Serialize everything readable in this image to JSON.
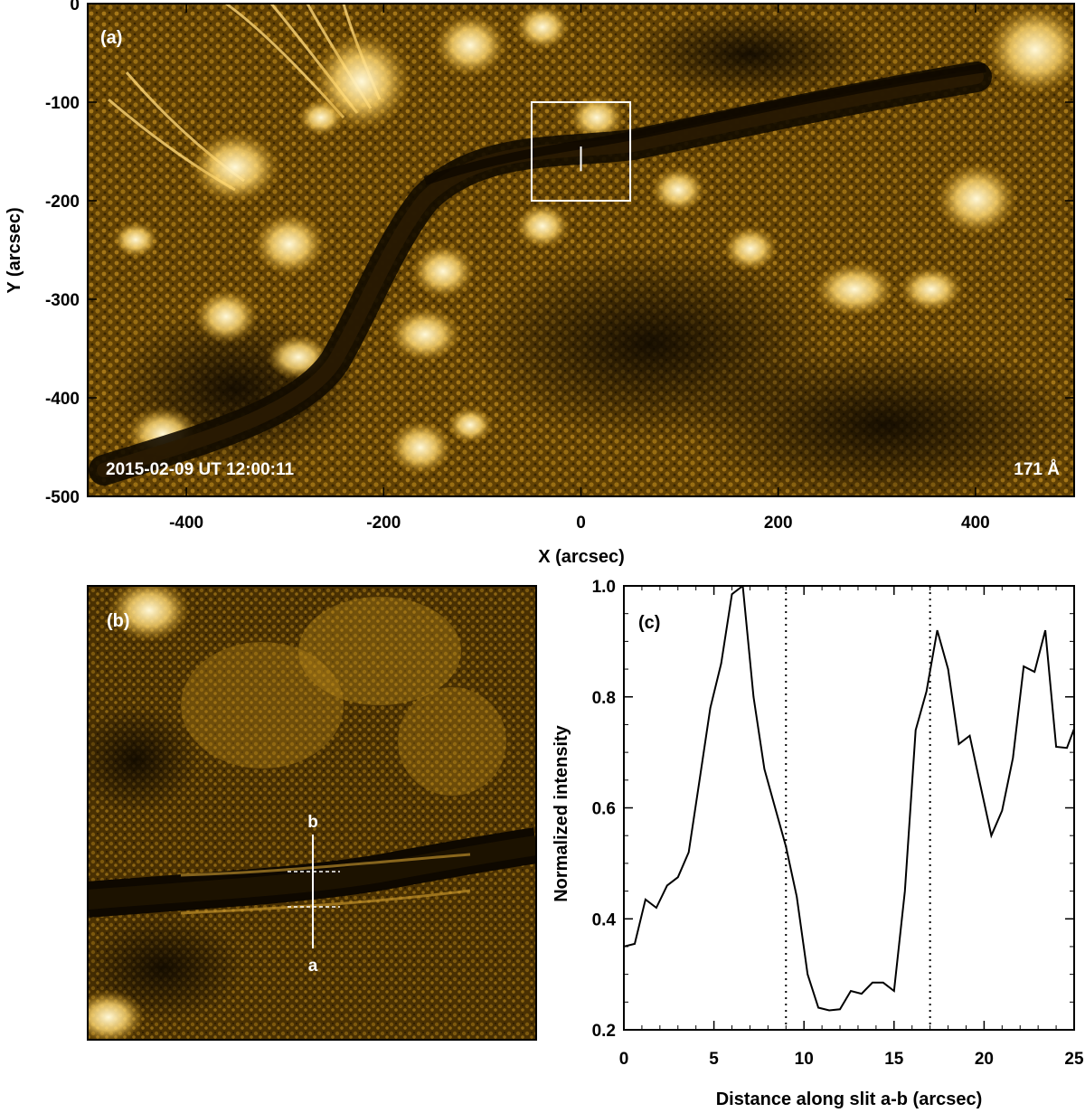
{
  "panel_a": {
    "label": "(a)",
    "timestamp": "2015-02-09 UT 12:00:11",
    "wavelength": "171 Å",
    "xlabel": "X (arcsec)",
    "ylabel": "Y (arcsec)",
    "xlim": [
      -500,
      500
    ],
    "ylim": [
      -500,
      0
    ],
    "xticks": [
      -400,
      -200,
      0,
      200,
      400
    ],
    "yticks": [
      0,
      -100,
      -200,
      -300,
      -400,
      -500
    ],
    "box": {
      "x": [
        -50,
        50
      ],
      "y": [
        -200,
        -100
      ]
    },
    "slit": {
      "x": 0,
      "y": [
        -170,
        -145
      ]
    },
    "image_colors": {
      "dark": "#1a1000",
      "mid": "#7a5200",
      "bright": "#ffe9a8"
    }
  },
  "panel_b": {
    "label": "(b)",
    "slit_label_a": "a",
    "slit_label_b": "b"
  },
  "chart_data": {
    "type": "line",
    "label": "(c)",
    "xlabel": "Distance along slit a-b (arcsec)",
    "ylabel": "Normalized intensity",
    "xlim": [
      0,
      25
    ],
    "ylim": [
      0.2,
      1.0
    ],
    "xticks": [
      0,
      5,
      10,
      15,
      20,
      25
    ],
    "yticks": [
      0.2,
      0.4,
      0.6,
      0.8,
      1.0
    ],
    "vlines": [
      9,
      17
    ],
    "series": [
      {
        "x": [
          0,
          0.6,
          1.2,
          1.8,
          2.4,
          3.0,
          3.6,
          4.2,
          4.8,
          5.4,
          6.0,
          6.6,
          7.2,
          7.8,
          8.4,
          9.0,
          9.6,
          10.2,
          10.8,
          11.4,
          12.0,
          12.6,
          13.2,
          13.8,
          14.4,
          15.0,
          15.6,
          16.2,
          16.8,
          17.4,
          18.0,
          18.6,
          19.2,
          19.8,
          20.4,
          21.0,
          21.6,
          22.2,
          22.8,
          23.4,
          24.0,
          24.6,
          25.2
        ],
        "y": [
          0.35,
          0.355,
          0.435,
          0.42,
          0.46,
          0.475,
          0.52,
          0.65,
          0.78,
          0.86,
          0.985,
          1.0,
          0.8,
          0.67,
          0.6,
          0.53,
          0.44,
          0.3,
          0.24,
          0.235,
          0.237,
          0.27,
          0.265,
          0.285,
          0.285,
          0.27,
          0.45,
          0.74,
          0.81,
          0.92,
          0.85,
          0.715,
          0.73,
          0.64,
          0.55,
          0.595,
          0.69,
          0.855,
          0.845,
          0.92,
          0.71,
          0.708,
          0.76
        ]
      }
    ]
  }
}
